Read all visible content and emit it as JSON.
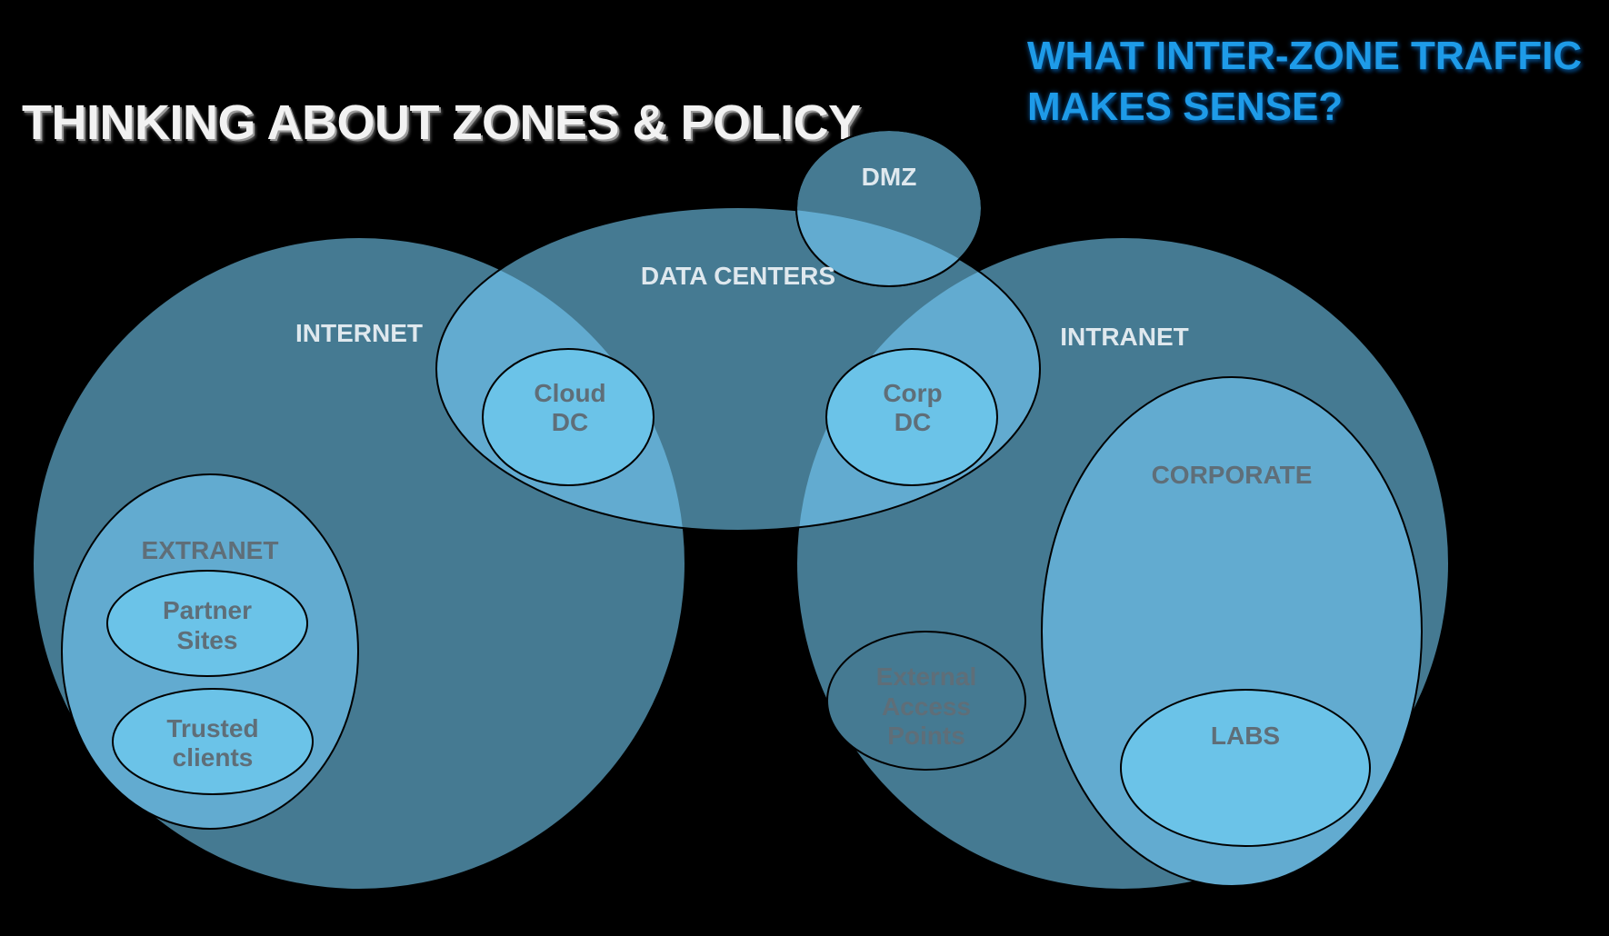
{
  "title": "THINKING ABOUT ZONES & POLICY",
  "question": [
    "WHAT INTER-ZONE TRAFFIC",
    "MAKES SENSE?"
  ],
  "zones": {
    "internet": "INTERNET",
    "data_centers": "DATA CENTERS",
    "dmz": "DMZ",
    "intranet": "INTRANET",
    "extranet": "EXTRANET",
    "partner_sites": [
      "Partner",
      "Sites"
    ],
    "trusted_clients": [
      "Trusted",
      "clients"
    ],
    "cloud_dc": [
      "Cloud",
      "DC"
    ],
    "corp_dc": [
      "Corp",
      "DC"
    ],
    "corporate": "CORPORATE",
    "external_access_points": [
      "External",
      "Access",
      "Points"
    ],
    "labs": "LABS"
  },
  "colors": {
    "background": "#000000",
    "zone_dark": "#457a92",
    "zone_mid": "#62abd0",
    "zone_light": "#6bc3e8",
    "title_accent": "#1e9be8"
  }
}
